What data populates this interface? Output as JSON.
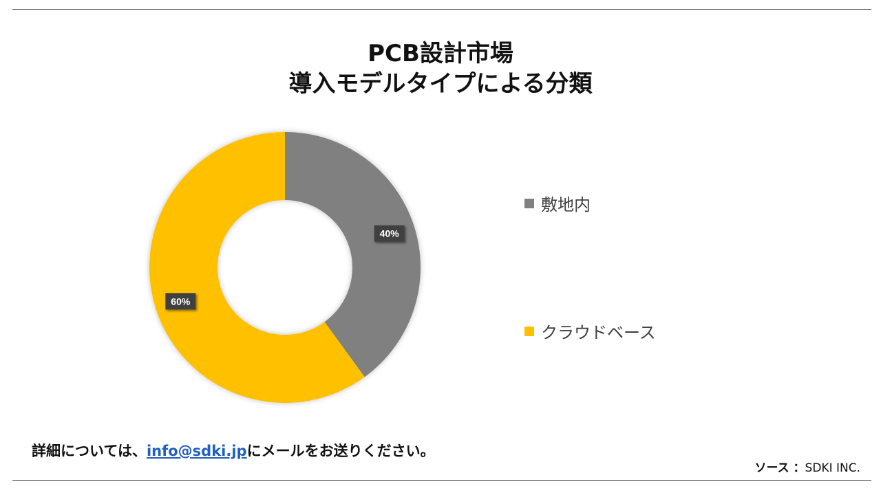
{
  "header": {
    "title_line1": "PCB設計市場",
    "title_line2": "導入モデルタイプによる分類"
  },
  "chart_data": {
    "type": "pie",
    "donut": true,
    "categories": [
      "敷地内",
      "クラウドベース"
    ],
    "values": [
      40,
      60
    ],
    "data_labels": [
      "40%",
      "60%"
    ],
    "colors": [
      "#808080",
      "#FFC000"
    ],
    "legend_position": "right"
  },
  "footer": {
    "note_prefix": "詳細については、",
    "email": "info@sdki.jp",
    "note_suffix": "にメールをお送りください。",
    "source_label": "ソース ：",
    "source_value": "SDKI INC."
  }
}
